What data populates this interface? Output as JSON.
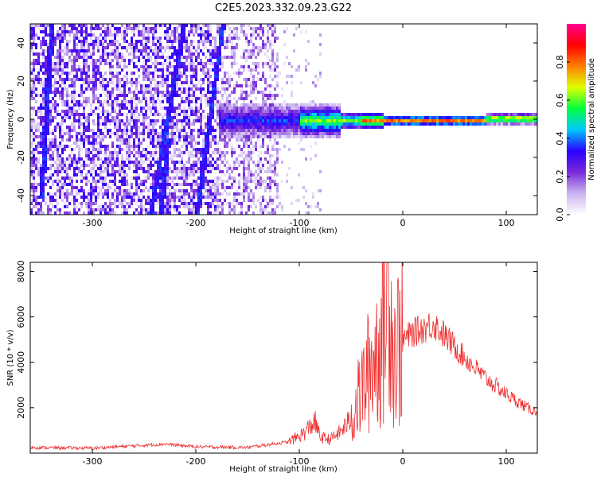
{
  "title": "C2E5.2023.332.09.23.G22",
  "chart_data": [
    {
      "type": "heatmap",
      "xlabel": "Height of straight line (km)",
      "ylabel": "Frequency (Hz)",
      "xlim": [
        -360,
        130
      ],
      "ylim": [
        -50,
        50
      ],
      "xticks": [
        -300,
        -200,
        -100,
        0,
        100
      ],
      "yticks": [
        -40,
        -20,
        0,
        20,
        40
      ],
      "colorbar": {
        "label": "Normalized spectral amplitude",
        "range": [
          0.0,
          1.0
        ],
        "ticks": [
          0.0,
          0.2,
          0.4,
          0.6,
          0.8
        ],
        "tick_labels": [
          "0.0",
          "0.2",
          "0.4",
          "0.6",
          "0.8"
        ],
        "colors": [
          "#ffffff",
          "#c9b4f0",
          "#7a2bd9",
          "#2a00ff",
          "#00c8ff",
          "#00ff40",
          "#e0ff00",
          "#ff8000",
          "#ff0000",
          "#ff0090"
        ]
      },
      "features": [
        {
          "kind": "line_of_sight_carrier",
          "x_from": -130,
          "x_to": 130,
          "frequency_hz": 0,
          "peak_amplitude": 0.9
        }
      ]
    },
    {
      "type": "line",
      "xlabel": "Height of straight line (km)",
      "ylabel": "SNR (10 * v/v)",
      "xlim": [
        -360,
        130
      ],
      "ylim": [
        0,
        8400
      ],
      "xticks": [
        -300,
        -200,
        -100,
        0,
        100
      ],
      "yticks": [
        2000,
        4000,
        6000,
        8000
      ],
      "series": [
        {
          "color": "#ee3030",
          "x": [
            -360,
            -300,
            -230,
            -200,
            -150,
            -110,
            -95,
            -85,
            -80,
            -70,
            -60,
            -50,
            -40,
            -30,
            -20,
            -12,
            -10,
            0,
            10,
            20,
            30,
            40,
            60,
            80,
            100,
            120,
            130
          ],
          "y": [
            250,
            220,
            400,
            280,
            250,
            500,
            900,
            1400,
            700,
            600,
            950,
            1500,
            2700,
            4000,
            5000,
            8300,
            4500,
            5000,
            5300,
            5500,
            5700,
            5200,
            4200,
            3300,
            2600,
            2000,
            1800
          ]
        }
      ]
    }
  ]
}
